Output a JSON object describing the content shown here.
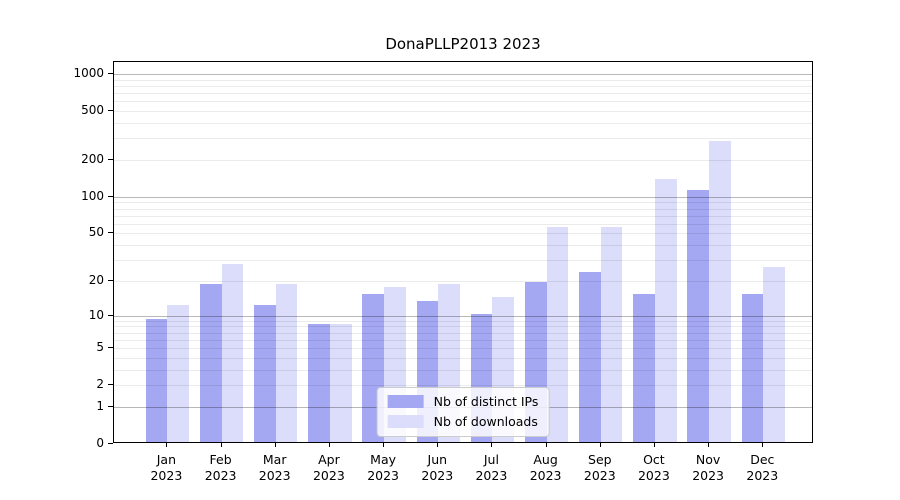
{
  "title": "DonaPLLP2013 2023",
  "chart_data": {
    "type": "bar",
    "title": "DonaPLLP2013 2023",
    "categories": [
      "Jan",
      "Feb",
      "Mar",
      "Apr",
      "May",
      "Jun",
      "Jul",
      "Aug",
      "Sep",
      "Oct",
      "Nov",
      "Dec"
    ],
    "year": "2023",
    "series": [
      {
        "name": "Nb of distinct IPs",
        "color": "#a4a7f1",
        "values": [
          9,
          18,
          12,
          8,
          15,
          13,
          10,
          19,
          23,
          15,
          110,
          15
        ]
      },
      {
        "name": "Nb of downloads",
        "color": "#dbddfa",
        "values": [
          12,
          27,
          18,
          8,
          17,
          18,
          14,
          54,
          54,
          135,
          275,
          25
        ]
      }
    ],
    "y_ticks": [
      0,
      1,
      2,
      5,
      10,
      20,
      50,
      100,
      200,
      500,
      1000
    ],
    "y_major_gridlines": [
      1,
      10,
      100,
      1000
    ],
    "scale": "log10(value+1)",
    "ylim": [
      0,
      1228
    ],
    "xlabel": "",
    "ylabel": "",
    "grid": true,
    "legend_position": "lower center",
    "colors": {
      "major_grid": "#b8b8b8",
      "minor_grid": "#e9e9e9",
      "axis": "#000000",
      "background": "#ffffff"
    }
  }
}
